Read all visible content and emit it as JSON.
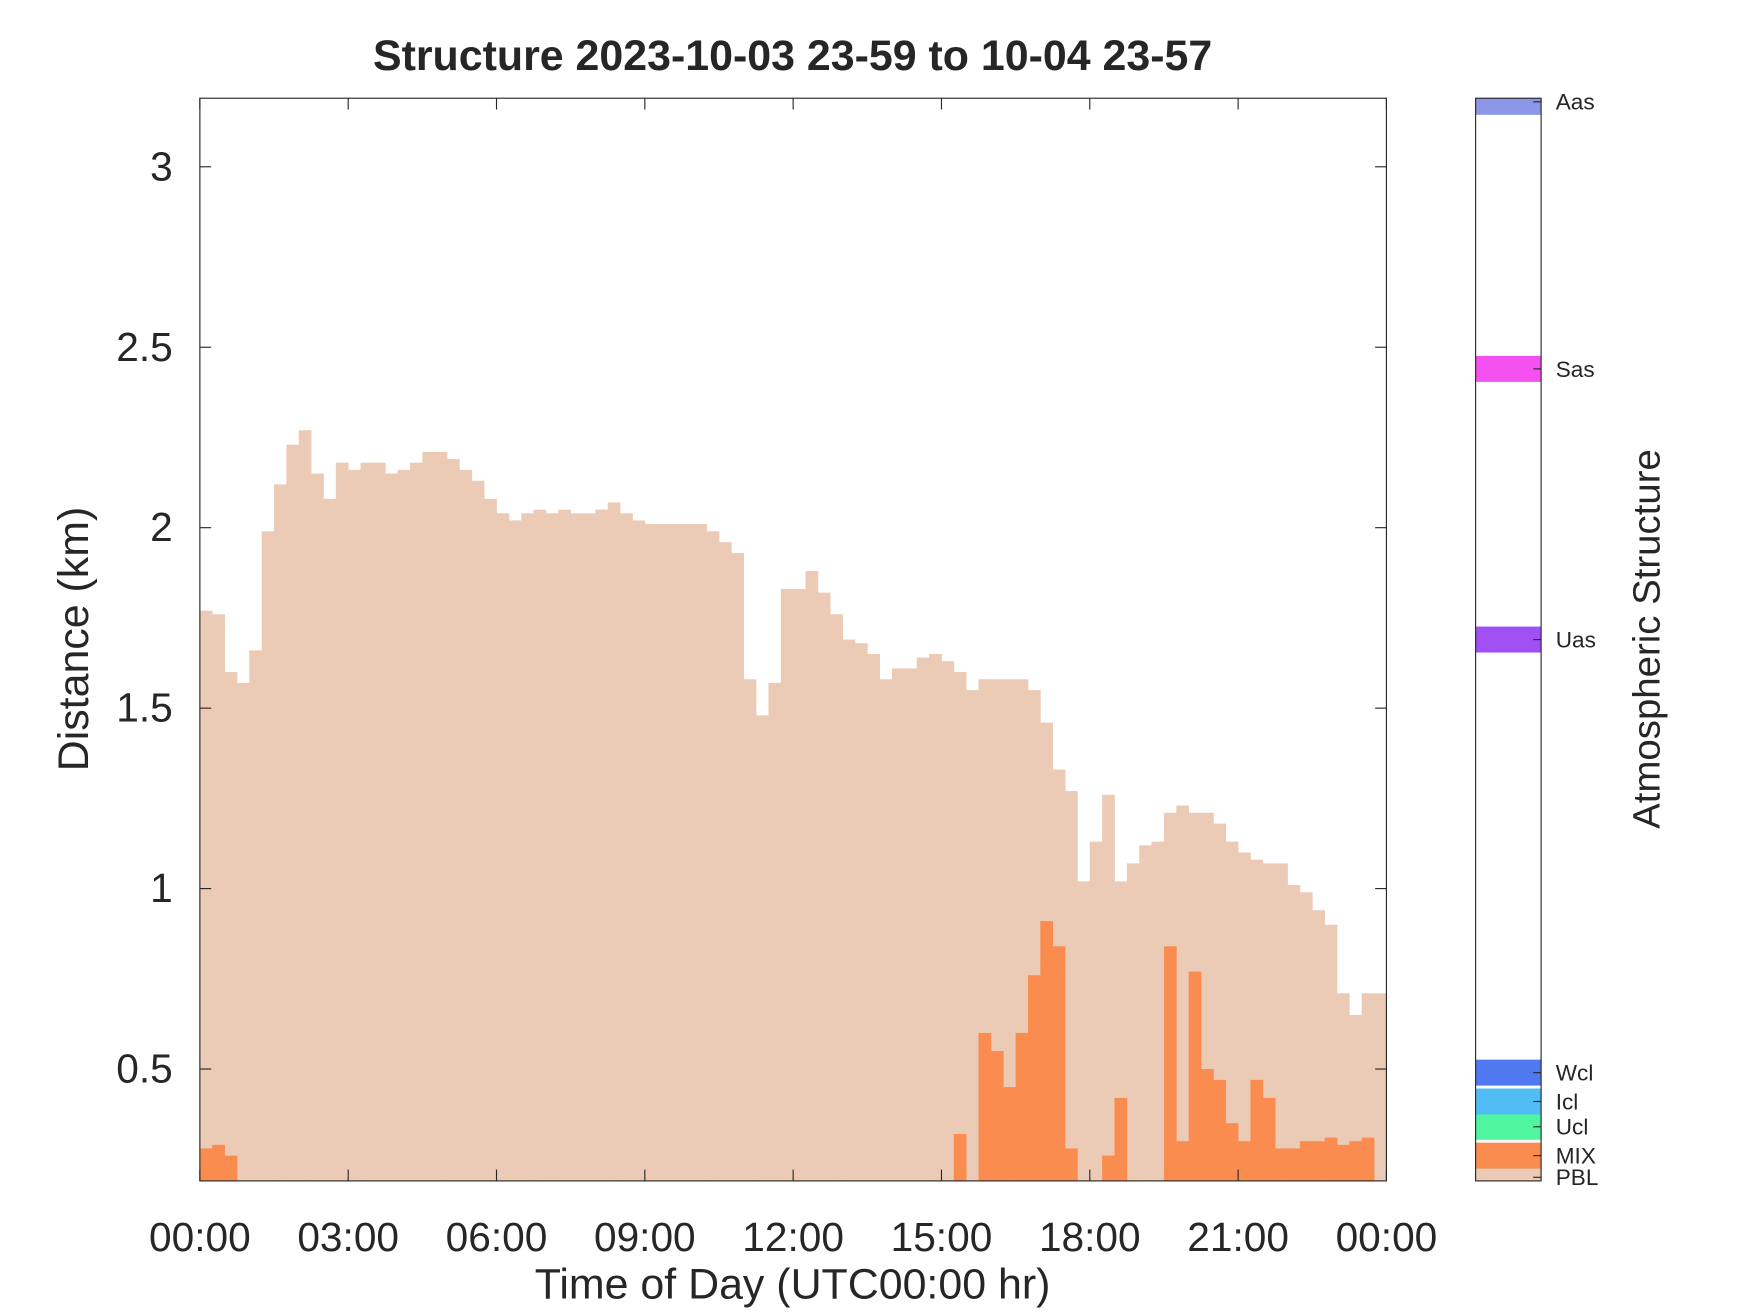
{
  "chart_data": {
    "type": "bar",
    "title": "Structure 2023-10-03 23-59 to 10-04 23-57",
    "x_label": "Time of Day (UTC00:00 hr)",
    "y_label": "Distance (km)",
    "xlim": [
      0,
      24
    ],
    "xticks": [
      {
        "value": 0,
        "label": "00:00"
      },
      {
        "value": 3,
        "label": "03:00"
      },
      {
        "value": 6,
        "label": "06:00"
      },
      {
        "value": 9,
        "label": "09:00"
      },
      {
        "value": 12,
        "label": "12:00"
      },
      {
        "value": 15,
        "label": "15:00"
      },
      {
        "value": 18,
        "label": "18:00"
      },
      {
        "value": 21,
        "label": "21:00"
      },
      {
        "value": 24,
        "label": "00:00"
      }
    ],
    "ylim": [
      0.19,
      3.19
    ],
    "yticks": [
      0.5,
      1,
      1.5,
      2,
      2.5,
      3
    ],
    "x": [
      0,
      0.25,
      0.5,
      0.75,
      1,
      1.25,
      1.5,
      1.75,
      2,
      2.25,
      2.5,
      2.75,
      3,
      3.25,
      3.5,
      3.75,
      4,
      4.25,
      4.5,
      4.75,
      5,
      5.25,
      5.5,
      5.75,
      6,
      6.25,
      6.5,
      6.75,
      7,
      7.25,
      7.5,
      7.75,
      8,
      8.25,
      8.5,
      8.75,
      9,
      9.25,
      9.5,
      9.75,
      10,
      10.25,
      10.5,
      10.75,
      11,
      11.25,
      11.5,
      11.75,
      12,
      12.25,
      12.5,
      12.75,
      13,
      13.25,
      13.5,
      13.75,
      14,
      14.25,
      14.5,
      14.75,
      15,
      15.25,
      15.5,
      15.75,
      16,
      16.25,
      16.5,
      16.75,
      17,
      17.25,
      17.5,
      17.75,
      18,
      18.25,
      18.5,
      18.75,
      19,
      19.25,
      19.5,
      19.75,
      20,
      20.25,
      20.5,
      20.75,
      21,
      21.25,
      21.5,
      21.75,
      22,
      22.25,
      22.5,
      22.75,
      23,
      23.25,
      23.5,
      23.75
    ],
    "series": [
      {
        "name": "PBL",
        "color": "#ebcbb5",
        "values": [
          1.77,
          1.76,
          1.6,
          1.57,
          1.66,
          1.99,
          2.12,
          2.23,
          2.27,
          2.15,
          2.08,
          2.18,
          2.16,
          2.18,
          2.18,
          2.15,
          2.16,
          2.18,
          2.21,
          2.21,
          2.19,
          2.16,
          2.13,
          2.08,
          2.04,
          2.02,
          2.04,
          2.05,
          2.04,
          2.05,
          2.04,
          2.04,
          2.05,
          2.07,
          2.04,
          2.02,
          2.01,
          2.01,
          2.01,
          2.01,
          2.01,
          1.99,
          1.96,
          1.93,
          1.58,
          1.48,
          1.57,
          1.83,
          1.83,
          1.88,
          1.82,
          1.76,
          1.69,
          1.68,
          1.65,
          1.58,
          1.61,
          1.61,
          1.64,
          1.65,
          1.63,
          1.6,
          1.55,
          1.58,
          1.58,
          1.58,
          1.58,
          1.55,
          1.46,
          1.33,
          1.27,
          1.02,
          1.13,
          1.26,
          1.02,
          1.07,
          1.12,
          1.13,
          1.21,
          1.23,
          1.21,
          1.21,
          1.18,
          1.13,
          1.1,
          1.08,
          1.07,
          1.07,
          1.01,
          0.99,
          0.94,
          0.9,
          0.71,
          0.65,
          0.71,
          0.71
        ]
      },
      {
        "name": "MIX",
        "color": "#fa8c50",
        "values": [
          0.28,
          0.29,
          0.26,
          null,
          null,
          null,
          null,
          null,
          null,
          null,
          null,
          null,
          null,
          null,
          null,
          null,
          null,
          null,
          null,
          null,
          null,
          null,
          null,
          null,
          null,
          null,
          null,
          null,
          null,
          null,
          null,
          null,
          null,
          null,
          null,
          null,
          null,
          null,
          null,
          null,
          null,
          null,
          null,
          null,
          null,
          null,
          null,
          null,
          null,
          null,
          null,
          null,
          null,
          null,
          null,
          null,
          null,
          null,
          null,
          null,
          null,
          0.32,
          null,
          0.6,
          0.55,
          0.45,
          0.6,
          0.76,
          0.91,
          0.84,
          0.28,
          null,
          null,
          0.26,
          0.42,
          null,
          null,
          null,
          0.84,
          0.3,
          0.77,
          0.5,
          0.47,
          0.35,
          0.3,
          0.47,
          0.42,
          0.28,
          0.28,
          0.3,
          0.3,
          0.31,
          0.29,
          0.3,
          0.31,
          null
        ]
      }
    ],
    "colorbar": {
      "label": "Atmospheric Structure",
      "lim": [
        0.19,
        3.19
      ],
      "classes": [
        {
          "name": "PBL",
          "color": "#ebcbb5",
          "value": 0.2
        },
        {
          "name": "MIX",
          "color": "#fa8c50",
          "value": 0.26
        },
        {
          "name": "Ucl",
          "color": "#50f5a0",
          "value": 0.34
        },
        {
          "name": "Icl",
          "color": "#50bef5",
          "value": 0.41
        },
        {
          "name": "Wcl",
          "color": "#5078f0",
          "value": 0.49
        },
        {
          "name": "Uas",
          "color": "#a050f5",
          "value": 1.69
        },
        {
          "name": "Sas",
          "color": "#f550f0",
          "value": 2.44
        },
        {
          "name": "Aas",
          "color": "#8c96e6",
          "value": 3.18
        }
      ]
    }
  }
}
